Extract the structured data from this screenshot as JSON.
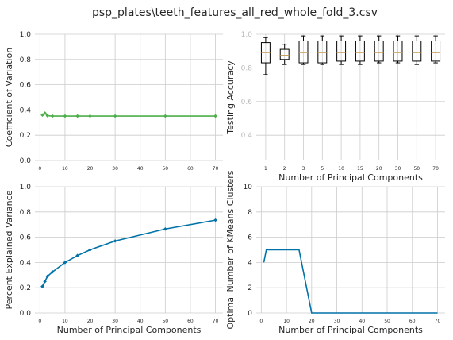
{
  "figure": {
    "title": "psp_plates\\teeth_features_all_red_whole_fold_3.csv"
  },
  "chart_data": [
    {
      "type": "line",
      "xlabel": "",
      "ylabel": "Coefficient of Variation",
      "xlim": [
        -2,
        73
      ],
      "ylim": [
        0,
        1.0
      ],
      "xticks": [
        0,
        10,
        20,
        30,
        40,
        50,
        60,
        70
      ],
      "yticks": [
        0.0,
        0.2,
        0.4,
        0.6,
        0.8,
        1.0
      ],
      "grid": true,
      "series": [
        {
          "color": "#4daf4a",
          "marker": "diamond",
          "x": [
            1,
            2,
            3,
            5,
            10,
            15,
            20,
            30,
            50,
            70
          ],
          "y": [
            0.36,
            0.375,
            0.355,
            0.352,
            0.352,
            0.352,
            0.352,
            0.352,
            0.352,
            0.352
          ]
        }
      ]
    },
    {
      "type": "box",
      "xlabel": "Number of Principal Components",
      "ylabel": "Testing Accuracy",
      "ylim": [
        0.25,
        1.0
      ],
      "yticks": [
        0.4,
        0.6,
        0.8,
        1.0
      ],
      "grid": true,
      "categories": [
        "1",
        "2",
        "3",
        "5",
        "10",
        "15",
        "20",
        "30",
        "50",
        "70"
      ],
      "boxes": [
        {
          "whislo": 0.76,
          "q1": 0.83,
          "med": 0.89,
          "q3": 0.95,
          "whishi": 0.98
        },
        {
          "whislo": 0.82,
          "q1": 0.85,
          "med": 0.875,
          "q3": 0.91,
          "whishi": 0.94
        },
        {
          "whislo": 0.82,
          "q1": 0.83,
          "med": 0.89,
          "q3": 0.96,
          "whishi": 0.99
        },
        {
          "whislo": 0.82,
          "q1": 0.83,
          "med": 0.89,
          "q3": 0.96,
          "whishi": 0.99
        },
        {
          "whislo": 0.82,
          "q1": 0.84,
          "med": 0.89,
          "q3": 0.96,
          "whishi": 0.99
        },
        {
          "whislo": 0.82,
          "q1": 0.84,
          "med": 0.89,
          "q3": 0.96,
          "whishi": 0.99
        },
        {
          "whislo": 0.83,
          "q1": 0.84,
          "med": 0.89,
          "q3": 0.96,
          "whishi": 0.99
        },
        {
          "whislo": 0.83,
          "q1": 0.84,
          "med": 0.89,
          "q3": 0.96,
          "whishi": 0.99
        },
        {
          "whislo": 0.82,
          "q1": 0.84,
          "med": 0.89,
          "q3": 0.96,
          "whishi": 0.99
        },
        {
          "whislo": 0.83,
          "q1": 0.84,
          "med": 0.89,
          "q3": 0.96,
          "whishi": 0.99
        }
      ],
      "median_color": "#c8a060"
    },
    {
      "type": "line",
      "xlabel": "Number of Principal Components",
      "ylabel": "Percent Explained Variance",
      "xlim": [
        -2,
        73
      ],
      "ylim": [
        0,
        1.0
      ],
      "xticks": [
        0,
        10,
        20,
        30,
        40,
        50,
        60,
        70
      ],
      "yticks": [
        0.0,
        0.2,
        0.4,
        0.6,
        0.8,
        1.0
      ],
      "grid": true,
      "series": [
        {
          "color": "#0072a8",
          "marker": "diamond",
          "x": [
            1,
            2,
            3,
            5,
            10,
            15,
            20,
            30,
            50,
            70
          ],
          "y": [
            0.21,
            0.25,
            0.29,
            0.325,
            0.4,
            0.455,
            0.5,
            0.57,
            0.665,
            0.735
          ]
        }
      ]
    },
    {
      "type": "line",
      "xlabel": "Number of Principal Components",
      "ylabel": "Optimal Number of KMeans Clusters",
      "xlim": [
        -2,
        73
      ],
      "ylim": [
        0,
        10
      ],
      "xticks": [
        0,
        10,
        20,
        30,
        40,
        50,
        60,
        70
      ],
      "yticks": [
        0,
        2,
        4,
        6,
        8,
        10
      ],
      "grid": true,
      "series": [
        {
          "color": "#0072a8",
          "marker": "none",
          "x": [
            1,
            2,
            3,
            5,
            10,
            15,
            20,
            30,
            50,
            70
          ],
          "y": [
            4,
            5,
            5,
            5,
            5,
            5,
            0,
            0,
            0,
            0
          ]
        }
      ]
    }
  ]
}
